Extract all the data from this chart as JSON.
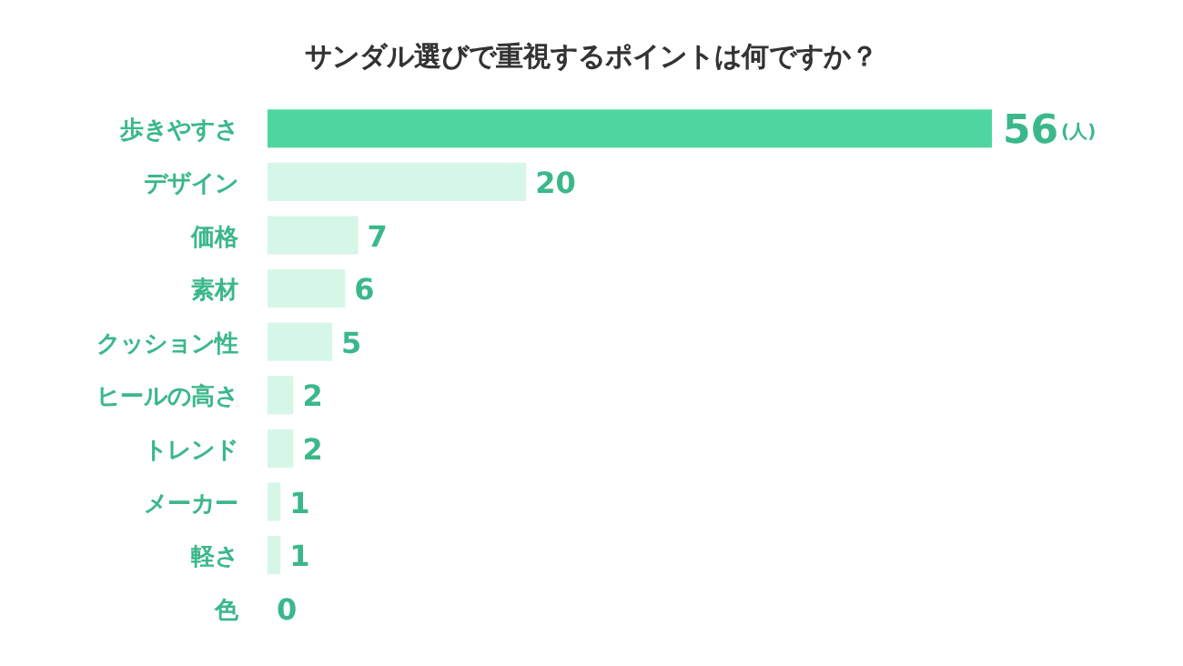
{
  "chart_data": {
    "type": "bar",
    "orientation": "horizontal",
    "title": "サンダル選びで重視するポイントは何ですか？",
    "categories": [
      "歩きやすさ",
      "デザイン",
      "価格",
      "素材",
      "クッション性",
      "ヒールの高さ",
      "トレンド",
      "メーカー",
      "軽さ",
      "色"
    ],
    "values": [
      56,
      20,
      7,
      6,
      5,
      2,
      2,
      1,
      1,
      0
    ],
    "colors": [
      "#4fd69f",
      "#d6f6e7",
      "#d6f6e7",
      "#d6f6e7",
      "#d6f6e7",
      "#d6f6e7",
      "#d6f6e7",
      "#d6f6e7",
      "#d6f6e7",
      "#d6f6e7"
    ],
    "data_labels": true,
    "annotations": [
      "(人)"
    ]
  }
}
